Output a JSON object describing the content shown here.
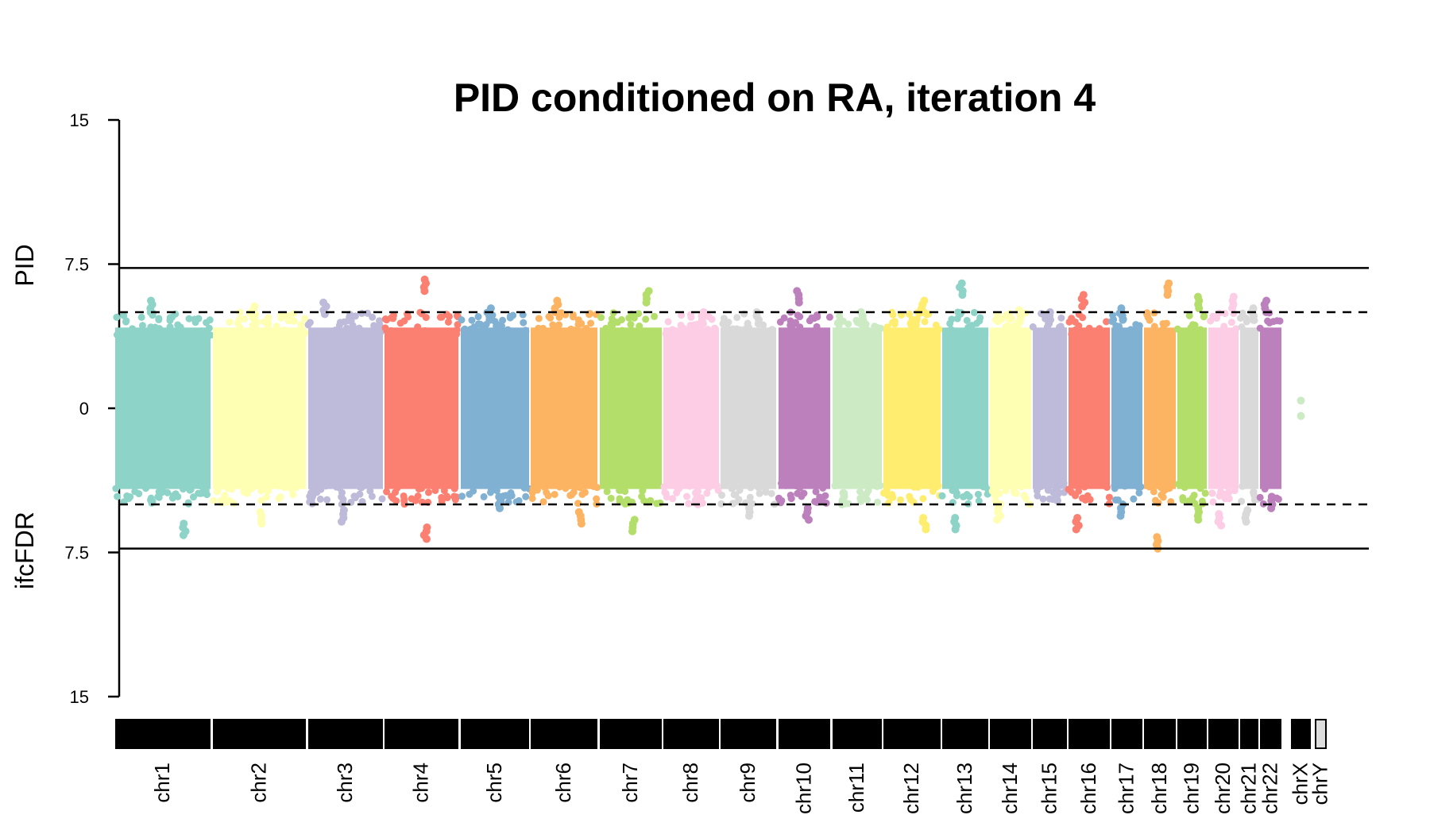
{
  "chart_data": {
    "type": "scatter",
    "subtype": "miami-manhattan",
    "title": "PID conditioned on RA, iteration 4",
    "top_ylabel": "PID",
    "bottom_ylabel": "ifcFDR",
    "yticks": [
      "15",
      "7.5",
      "0",
      "7.5",
      "15"
    ],
    "ylim_top": [
      0,
      15
    ],
    "ylim_bottom": [
      0,
      15
    ],
    "thresholds": [
      {
        "side": "top",
        "value": 7.3,
        "style": "solid"
      },
      {
        "side": "top",
        "value": 5.0,
        "style": "dashed"
      },
      {
        "side": "bottom",
        "value": 5.0,
        "style": "dashed"
      },
      {
        "side": "bottom",
        "value": 7.3,
        "style": "solid"
      }
    ],
    "chromosomes": [
      {
        "name": "chr1",
        "color": "#8dd3c7",
        "top_max": 5.6,
        "bottom_max": 6.6
      },
      {
        "name": "chr2",
        "color": "#ffffb3",
        "top_max": 5.3,
        "bottom_max": 6.0
      },
      {
        "name": "chr3",
        "color": "#bebada",
        "top_max": 5.5,
        "bottom_max": 5.9
      },
      {
        "name": "chr4",
        "color": "#fb8072",
        "top_max": 6.7,
        "bottom_max": 6.8
      },
      {
        "name": "chr5",
        "color": "#80b1d3",
        "top_max": 5.2,
        "bottom_max": 5.2
      },
      {
        "name": "chr6",
        "color": "#fdb462",
        "top_max": 5.6,
        "bottom_max": 6.0
      },
      {
        "name": "chr7",
        "color": "#b3de69",
        "top_max": 6.1,
        "bottom_max": 6.4
      },
      {
        "name": "chr8",
        "color": "#fccde5",
        "top_max": 5.0,
        "bottom_max": 5.0
      },
      {
        "name": "chr9",
        "color": "#d9d9d9",
        "top_max": 5.0,
        "bottom_max": 5.6
      },
      {
        "name": "chr10",
        "color": "#bc80bd",
        "top_max": 6.1,
        "bottom_max": 5.8
      },
      {
        "name": "chr11",
        "color": "#ccebc5",
        "top_max": 5.0,
        "bottom_max": 5.0
      },
      {
        "name": "chr12",
        "color": "#ffed6f",
        "top_max": 5.6,
        "bottom_max": 6.3
      },
      {
        "name": "chr13",
        "color": "#8dd3c7",
        "top_max": 6.5,
        "bottom_max": 6.3
      },
      {
        "name": "chr14",
        "color": "#ffffb3",
        "top_max": 5.1,
        "bottom_max": 5.8
      },
      {
        "name": "chr15",
        "color": "#bebada",
        "top_max": 5.0,
        "bottom_max": 4.8
      },
      {
        "name": "chr16",
        "color": "#fb8072",
        "top_max": 5.9,
        "bottom_max": 6.3
      },
      {
        "name": "chr17",
        "color": "#80b1d3",
        "top_max": 5.2,
        "bottom_max": 5.6
      },
      {
        "name": "chr18",
        "color": "#fdb462",
        "top_max": 6.5,
        "bottom_max": 7.3
      },
      {
        "name": "chr19",
        "color": "#b3de69",
        "top_max": 5.8,
        "bottom_max": 5.8
      },
      {
        "name": "chr20",
        "color": "#fccde5",
        "top_max": 5.8,
        "bottom_max": 6.1
      },
      {
        "name": "chr21",
        "color": "#d9d9d9",
        "top_max": 5.2,
        "bottom_max": 5.9
      },
      {
        "name": "chr22",
        "color": "#bc80bd",
        "top_max": 5.6,
        "bottom_max": 5.2
      },
      {
        "name": "chrX",
        "color": "#ccebc5",
        "top_max": 0.4,
        "bottom_max": 0.4
      },
      {
        "name": "chrY",
        "color": "#d9d9d9",
        "top_max": 0,
        "bottom_max": 0
      }
    ]
  }
}
